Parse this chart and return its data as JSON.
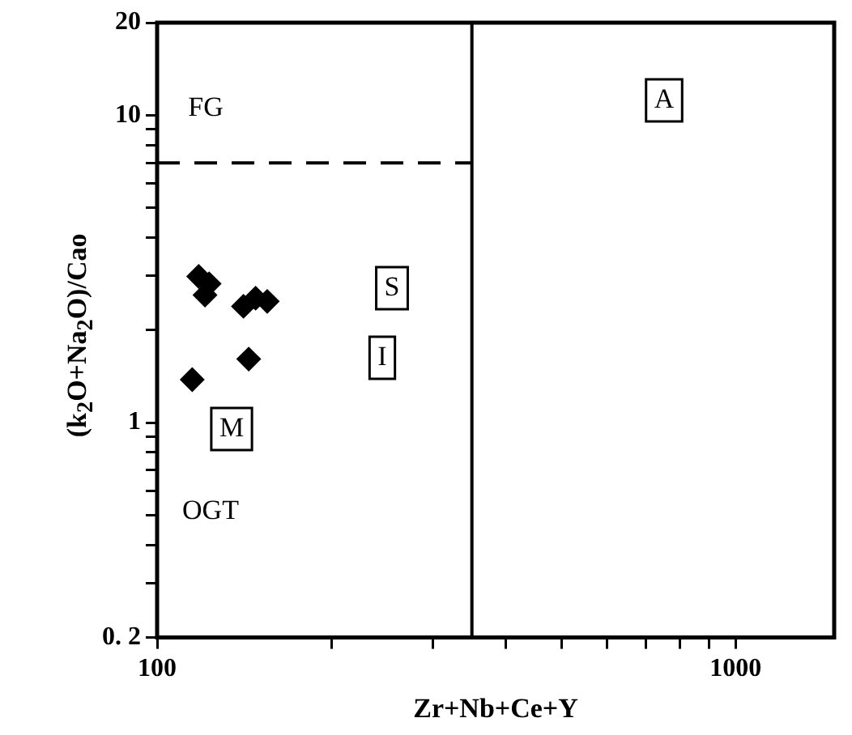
{
  "chart_data": {
    "type": "scatter",
    "xlabel": "Zr+Nb+Ce+Y",
    "ylabel": "(k$_{2}$O+Na$_{2}$O)/Cao",
    "log": "xy",
    "marker": "diamond",
    "grid": false,
    "legend": false,
    "xlim": [
      100,
      1480
    ],
    "ylim": [
      0.2,
      20
    ],
    "xticks": [
      100,
      {
        "value": 200,
        "label": null
      },
      {
        "value": 300,
        "label": null
      },
      {
        "value": 400,
        "label": null
      },
      {
        "value": 500,
        "label": null
      },
      {
        "value": 600,
        "label": null
      },
      {
        "value": 700,
        "label": null
      },
      {
        "value": 800,
        "label": null
      },
      {
        "value": 900,
        "label": null
      },
      1000
    ],
    "yticks": [
      {
        "value": 0.2,
        "label": "0. 2"
      },
      {
        "value": 0.3,
        "label": null
      },
      {
        "value": 0.4,
        "label": null
      },
      {
        "value": 0.5,
        "label": null
      },
      {
        "value": 0.6,
        "label": null
      },
      {
        "value": 0.7,
        "label": null
      },
      {
        "value": 0.8,
        "label": null
      },
      {
        "value": 0.9,
        "label": null
      },
      1,
      {
        "value": 2,
        "label": null
      },
      {
        "value": 3,
        "label": null
      },
      {
        "value": 4,
        "label": null
      },
      {
        "value": 5,
        "label": null
      },
      {
        "value": 6,
        "label": null
      },
      {
        "value": 7,
        "label": null
      },
      {
        "value": 8,
        "label": null
      },
      {
        "value": 9,
        "label": null
      },
      10,
      20
    ],
    "series": [
      {
        "color": "#000000",
        "x": [
          118,
          123,
          121,
          141,
          148,
          155,
          144,
          115
        ],
        "values": [
          2.99,
          2.83,
          2.6,
          2.39,
          2.54,
          2.48,
          1.61,
          1.38
        ]
      },
      {
        "type": "line",
        "color": "#000000",
        "line_style": "dashed",
        "marker": "none",
        "x": [
          100,
          350
        ],
        "values": [
          7,
          7
        ]
      }
    ],
    "ref_lines": [
      {
        "axis": "x",
        "value": 350,
        "color": "#000000"
      }
    ],
    "annotations": [
      "FG",
      "A",
      "S",
      "I",
      "M",
      "OGT"
    ]
  }
}
